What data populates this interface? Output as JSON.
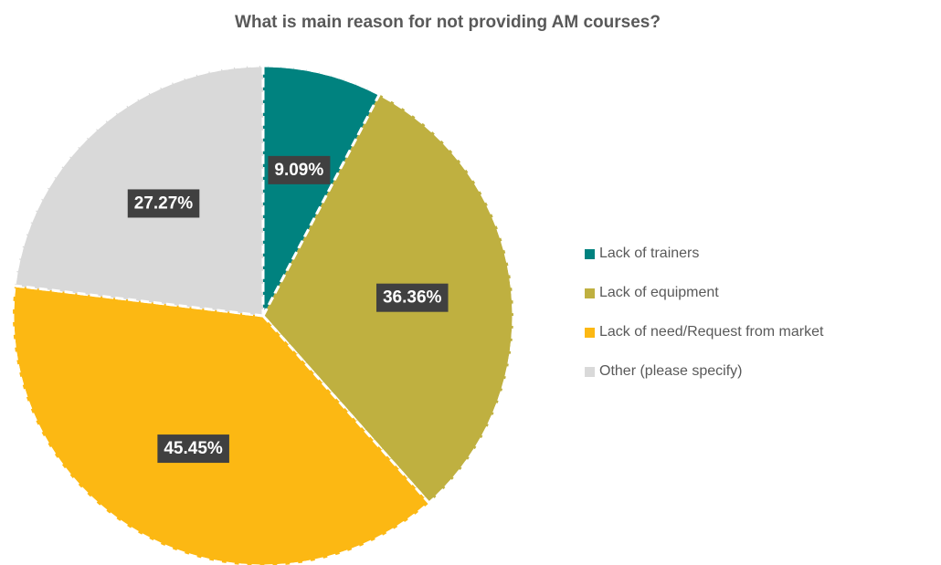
{
  "chart_data": {
    "type": "pie",
    "title": "What is main reason for not providing AM courses?",
    "categories": [
      "Lack of trainers",
      "Lack of equipment",
      "Lack of need/Request from market",
      "Other (please specify)"
    ],
    "values": [
      9.09,
      36.36,
      45.45,
      27.27
    ],
    "data_labels": [
      "9.09%",
      "36.36%",
      "45.45%",
      "27.27%"
    ],
    "colors": [
      "#00827F",
      "#BFB040",
      "#FCB813",
      "#D9D9D9"
    ],
    "legend_position": "right",
    "slice_border": "white dashed",
    "start_angle": "12 o'clock, clockwise"
  }
}
